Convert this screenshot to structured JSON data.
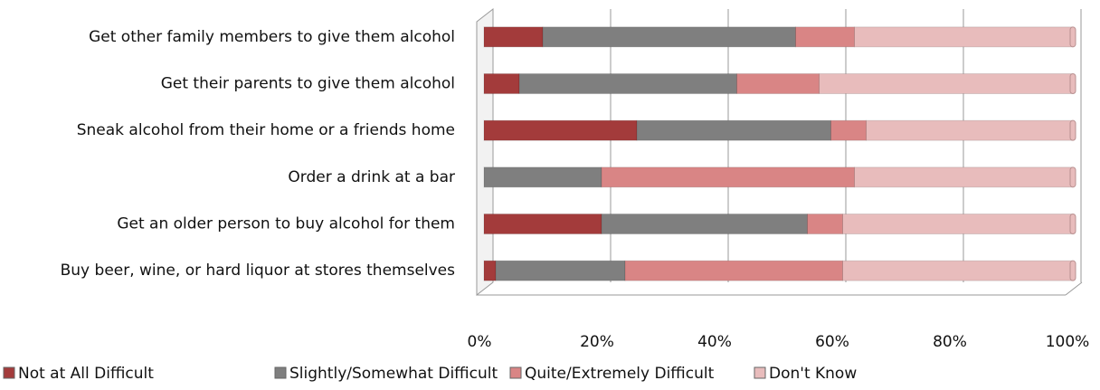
{
  "chart_data": {
    "type": "stacked_barh",
    "categories": [
      "Get other family members to give them alcohol",
      "Get their parents to give them alcohol",
      "Sneak alcohol from their home or a friends home",
      "Order a drink at a bar",
      "Get an older person to buy alcohol for them",
      "Buy beer, wine, or hard liquor at stores themselves"
    ],
    "series": [
      {
        "name": "Not at All Difficult",
        "color": "#a33b3b",
        "values": [
          10,
          6,
          26,
          0,
          20,
          2
        ]
      },
      {
        "name": "Slightly/Somewhat Difficult",
        "color": "#7f7f7f",
        "values": [
          43,
          37,
          33,
          20,
          35,
          22
        ]
      },
      {
        "name": "Quite/Extremely Difficult",
        "color": "#d98585",
        "values": [
          10,
          14,
          6,
          43,
          6,
          37
        ]
      },
      {
        "name": "Don't Know",
        "color": "#e8bcbc",
        "values": [
          37,
          43,
          35,
          37,
          39,
          39
        ]
      }
    ],
    "xlim": [
      0,
      100
    ],
    "xticks": [
      {
        "value": 0,
        "label": "0%"
      },
      {
        "value": 20,
        "label": "20%"
      },
      {
        "value": 40,
        "label": "40%"
      },
      {
        "value": 60,
        "label": "60%"
      },
      {
        "value": 80,
        "label": "80%"
      },
      {
        "value": 100,
        "label": "100%"
      }
    ],
    "grid": true,
    "legend": "bottom"
  }
}
